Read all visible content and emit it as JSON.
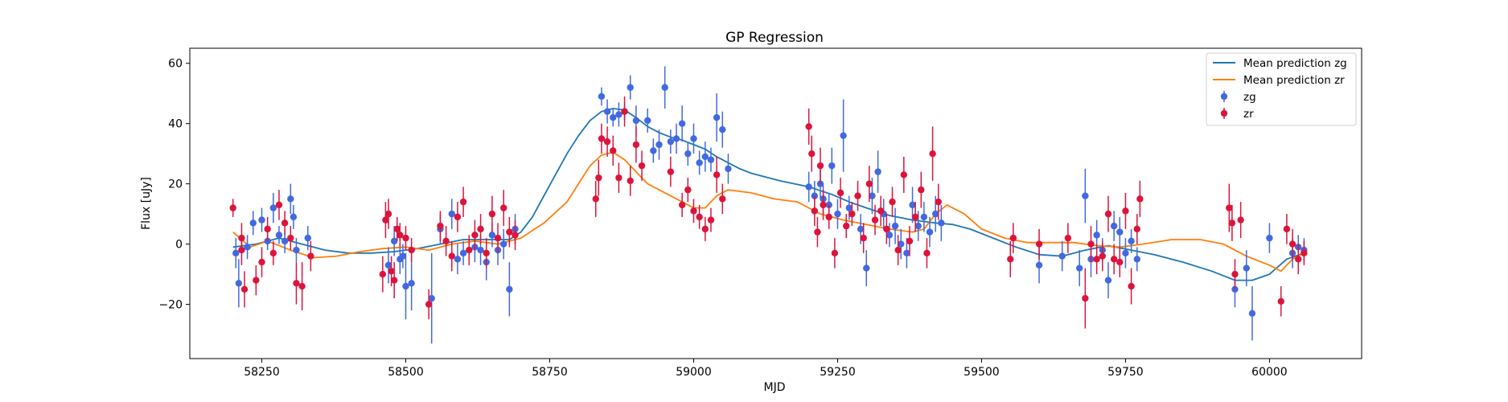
{
  "chart_data": {
    "type": "scatter",
    "title": "GP Regression",
    "xlabel": "MJD",
    "ylabel": "Flux [uJy]",
    "xlim": [
      58125,
      60160
    ],
    "ylim": [
      -38,
      65
    ],
    "xticks": [
      58250,
      58500,
      58750,
      59000,
      59250,
      59500,
      59750,
      60000
    ],
    "yticks": [
      -20,
      0,
      20,
      40,
      60
    ],
    "grid": false,
    "legend_position": "top-right",
    "lines": [
      {
        "name": "Mean prediction zg",
        "color": "#1f77b4",
        "x": [
          58200,
          58240,
          58280,
          58320,
          58360,
          58400,
          58440,
          58480,
          58520,
          58560,
          58600,
          58640,
          58680,
          58700,
          58720,
          58740,
          58760,
          58780,
          58800,
          58820,
          58840,
          58860,
          58880,
          58900,
          58920,
          58940,
          58960,
          58980,
          59000,
          59020,
          59040,
          59060,
          59080,
          59100,
          59150,
          59200,
          59240,
          59270,
          59300,
          59340,
          59380,
          59420,
          59450,
          59480,
          59520,
          59560,
          59600,
          59640,
          59680,
          59720,
          59760,
          59800,
          59850,
          59900,
          59940,
          59970,
          60000,
          60030,
          60060
        ],
        "y": [
          -1,
          0,
          2,
          0,
          -2,
          -3,
          -3,
          -2.5,
          -1.5,
          0,
          1.5,
          1.5,
          1.5,
          4,
          9,
          16,
          23,
          30,
          36,
          41,
          44,
          45,
          44.5,
          42,
          39,
          37,
          35.5,
          34.5,
          33,
          31.5,
          29,
          27,
          25,
          23.5,
          21,
          19,
          16.5,
          14,
          12,
          9.5,
          8,
          7,
          6.5,
          5,
          2,
          -1,
          -3.5,
          -4,
          -2,
          -0.5,
          -2,
          -3.5,
          -6,
          -9,
          -12,
          -12,
          -10,
          -5,
          -3
        ]
      },
      {
        "name": "Mean prediction zr",
        "color": "#ff7f0e",
        "x": [
          58200,
          58230,
          58260,
          58300,
          58340,
          58380,
          58420,
          58460,
          58500,
          58540,
          58580,
          58620,
          58660,
          58700,
          58740,
          58780,
          58800,
          58820,
          58840,
          58860,
          58880,
          58900,
          58920,
          58940,
          58960,
          58980,
          59000,
          59020,
          59040,
          59060,
          59080,
          59100,
          59140,
          59180,
          59220,
          59260,
          59300,
          59340,
          59380,
          59400,
          59420,
          59440,
          59470,
          59500,
          59540,
          59580,
          59620,
          59660,
          59700,
          59740,
          59780,
          59830,
          59880,
          59920,
          59960,
          60000,
          60020,
          60040,
          60060
        ],
        "y": [
          4,
          -1,
          1,
          -2,
          -4.5,
          -4,
          -2.5,
          -1.5,
          -1,
          -2,
          0,
          1,
          0,
          2,
          7,
          14,
          20,
          26,
          29.5,
          30.5,
          28,
          24,
          20,
          18,
          16,
          14,
          12,
          12,
          16,
          18,
          17.5,
          17,
          15,
          14,
          10,
          8,
          6.5,
          5,
          4,
          5,
          10,
          13,
          10,
          5,
          2,
          0.5,
          0.5,
          0.5,
          -0.5,
          -1,
          0,
          1.5,
          1.5,
          0,
          -4,
          -7,
          -9,
          -5,
          -3
        ]
      }
    ],
    "series": [
      {
        "name": "zg",
        "color": "#4169e1",
        "points": [
          [
            58205,
            -3,
            5
          ],
          [
            58210,
            -13,
            8
          ],
          [
            58225,
            -1,
            4
          ],
          [
            58235,
            7,
            4
          ],
          [
            58250,
            8,
            4
          ],
          [
            58260,
            1,
            3
          ],
          [
            58270,
            12,
            5
          ],
          [
            58280,
            3,
            3
          ],
          [
            58290,
            1,
            4
          ],
          [
            58300,
            15,
            5
          ],
          [
            58305,
            9,
            4
          ],
          [
            58310,
            -2,
            4
          ],
          [
            58330,
            2,
            4
          ],
          [
            58470,
            -7,
            6
          ],
          [
            58480,
            1,
            5
          ],
          [
            58490,
            -5,
            5
          ],
          [
            58495,
            -4,
            4
          ],
          [
            58500,
            -14,
            11
          ],
          [
            58510,
            -13,
            9
          ],
          [
            58545,
            -18,
            15
          ],
          [
            58560,
            5,
            5
          ],
          [
            58580,
            10,
            5
          ],
          [
            58590,
            -5,
            5
          ],
          [
            58600,
            -3,
            4
          ],
          [
            58620,
            -1,
            5
          ],
          [
            58630,
            -2,
            5
          ],
          [
            58640,
            -6,
            6
          ],
          [
            58650,
            3,
            4
          ],
          [
            58660,
            -2,
            5
          ],
          [
            58670,
            0,
            5
          ],
          [
            58680,
            -15,
            9
          ],
          [
            58690,
            5,
            5
          ],
          [
            58840,
            49,
            3
          ],
          [
            58850,
            44,
            4
          ],
          [
            58860,
            42,
            3
          ],
          [
            58870,
            43,
            4
          ],
          [
            58880,
            44,
            3
          ],
          [
            58890,
            52,
            4
          ],
          [
            58900,
            41,
            5
          ],
          [
            58920,
            41,
            4
          ],
          [
            58930,
            31,
            4
          ],
          [
            58940,
            33,
            5
          ],
          [
            58950,
            52,
            7
          ],
          [
            58960,
            34,
            4
          ],
          [
            58970,
            35,
            5
          ],
          [
            58980,
            40,
            6
          ],
          [
            58990,
            30,
            4
          ],
          [
            59000,
            35,
            5
          ],
          [
            59010,
            27,
            4
          ],
          [
            59020,
            29,
            5
          ],
          [
            59030,
            28,
            4
          ],
          [
            59040,
            42,
            8
          ],
          [
            59050,
            38,
            6
          ],
          [
            59060,
            25,
            5
          ],
          [
            59200,
            19,
            5
          ],
          [
            59210,
            16,
            5
          ],
          [
            59220,
            20,
            5
          ],
          [
            59225,
            15,
            5
          ],
          [
            59235,
            13,
            4
          ],
          [
            59240,
            26,
            6
          ],
          [
            59250,
            10,
            5
          ],
          [
            59260,
            36,
            12
          ],
          [
            59270,
            12,
            4
          ],
          [
            59290,
            5,
            5
          ],
          [
            59300,
            -8,
            6
          ],
          [
            59310,
            16,
            6
          ],
          [
            59320,
            24,
            7
          ],
          [
            59330,
            10,
            5
          ],
          [
            59340,
            3,
            4
          ],
          [
            59350,
            6,
            6
          ],
          [
            59360,
            0,
            5
          ],
          [
            59370,
            -3,
            5
          ],
          [
            59380,
            13,
            6
          ],
          [
            59390,
            6,
            5
          ],
          [
            59400,
            9,
            5
          ],
          [
            59410,
            4,
            5
          ],
          [
            59420,
            10,
            6
          ],
          [
            59430,
            7,
            6
          ],
          [
            59600,
            -7,
            6
          ],
          [
            59640,
            -4,
            5
          ],
          [
            59670,
            -8,
            6
          ],
          [
            59680,
            16,
            9
          ],
          [
            59690,
            -5,
            6
          ],
          [
            59700,
            3,
            5
          ],
          [
            59710,
            -2,
            4
          ],
          [
            59720,
            -12,
            6
          ],
          [
            59730,
            6,
            5
          ],
          [
            59740,
            4,
            5
          ],
          [
            59750,
            -3,
            5
          ],
          [
            59760,
            1,
            4
          ],
          [
            59770,
            -5,
            4
          ],
          [
            59940,
            -15,
            6
          ],
          [
            59960,
            -8,
            6
          ],
          [
            59970,
            -23,
            9
          ],
          [
            60000,
            2,
            5
          ],
          [
            60040,
            -3,
            5
          ],
          [
            60050,
            -1,
            4
          ],
          [
            60060,
            -2,
            4
          ]
        ]
      },
      {
        "name": "zr",
        "color": "#dc143c",
        "points": [
          [
            58200,
            12,
            3
          ],
          [
            58215,
            -2,
            5
          ],
          [
            58215,
            2,
            5
          ],
          [
            58220,
            -15,
            6
          ],
          [
            58240,
            -12,
            5
          ],
          [
            58250,
            -6,
            5
          ],
          [
            58260,
            5,
            4
          ],
          [
            58270,
            -3,
            4
          ],
          [
            58280,
            13,
            5
          ],
          [
            58290,
            7,
            4
          ],
          [
            58300,
            2,
            4
          ],
          [
            58310,
            -13,
            7
          ],
          [
            58320,
            -14,
            8
          ],
          [
            58335,
            -4,
            5
          ],
          [
            58460,
            -10,
            6
          ],
          [
            58465,
            8,
            6
          ],
          [
            58470,
            10,
            5
          ],
          [
            58475,
            -9,
            5
          ],
          [
            58480,
            -12,
            6
          ],
          [
            58485,
            5,
            4
          ],
          [
            58490,
            3,
            4
          ],
          [
            58500,
            2,
            4
          ],
          [
            58510,
            -2,
            4
          ],
          [
            58540,
            -20,
            5
          ],
          [
            58560,
            6,
            5
          ],
          [
            58570,
            1,
            5
          ],
          [
            58580,
            -4,
            5
          ],
          [
            58590,
            9,
            5
          ],
          [
            58600,
            14,
            5
          ],
          [
            58610,
            -2,
            5
          ],
          [
            58620,
            3,
            5
          ],
          [
            58630,
            5,
            5
          ],
          [
            58640,
            -3,
            5
          ],
          [
            58650,
            10,
            6
          ],
          [
            58660,
            2,
            5
          ],
          [
            58670,
            12,
            6
          ],
          [
            58680,
            4,
            5
          ],
          [
            58690,
            3,
            5
          ],
          [
            58830,
            15,
            6
          ],
          [
            58835,
            22,
            6
          ],
          [
            58840,
            35,
            5
          ],
          [
            58850,
            34,
            5
          ],
          [
            58860,
            31,
            5
          ],
          [
            58870,
            22,
            5
          ],
          [
            58880,
            44,
            5
          ],
          [
            58890,
            21,
            5
          ],
          [
            58900,
            33,
            6
          ],
          [
            58910,
            26,
            5
          ],
          [
            58960,
            24,
            5
          ],
          [
            58980,
            13,
            4
          ],
          [
            58990,
            18,
            4
          ],
          [
            59000,
            11,
            4
          ],
          [
            59010,
            9,
            4
          ],
          [
            59020,
            5,
            4
          ],
          [
            59030,
            8,
            4
          ],
          [
            59040,
            23,
            6
          ],
          [
            59050,
            15,
            5
          ],
          [
            59200,
            39,
            6
          ],
          [
            59205,
            30,
            6
          ],
          [
            59210,
            11,
            5
          ],
          [
            59215,
            4,
            5
          ],
          [
            59220,
            26,
            6
          ],
          [
            59225,
            13,
            5
          ],
          [
            59235,
            9,
            4
          ],
          [
            59245,
            -3,
            5
          ],
          [
            59255,
            17,
            5
          ],
          [
            59265,
            6,
            4
          ],
          [
            59275,
            10,
            4
          ],
          [
            59285,
            16,
            5
          ],
          [
            59295,
            2,
            5
          ],
          [
            59305,
            20,
            6
          ],
          [
            59315,
            8,
            5
          ],
          [
            59325,
            11,
            5
          ],
          [
            59335,
            5,
            5
          ],
          [
            59345,
            14,
            5
          ],
          [
            59355,
            -2,
            5
          ],
          [
            59365,
            23,
            6
          ],
          [
            59375,
            1,
            5
          ],
          [
            59385,
            9,
            5
          ],
          [
            59395,
            18,
            6
          ],
          [
            59405,
            -3,
            5
          ],
          [
            59415,
            30,
            9
          ],
          [
            59425,
            14,
            6
          ],
          [
            59550,
            -5,
            6
          ],
          [
            59555,
            2,
            5
          ],
          [
            59600,
            0,
            5
          ],
          [
            59650,
            2,
            5
          ],
          [
            59680,
            -18,
            10
          ],
          [
            59690,
            0,
            6
          ],
          [
            59700,
            -5,
            5
          ],
          [
            59710,
            -4,
            5
          ],
          [
            59720,
            10,
            6
          ],
          [
            59730,
            -5,
            5
          ],
          [
            59740,
            -6,
            5
          ],
          [
            59750,
            11,
            6
          ],
          [
            59760,
            -14,
            6
          ],
          [
            59770,
            5,
            5
          ],
          [
            59775,
            15,
            6
          ],
          [
            59930,
            12,
            8
          ],
          [
            59935,
            7,
            6
          ],
          [
            59940,
            -10,
            5
          ],
          [
            59950,
            8,
            6
          ],
          [
            60020,
            -19,
            5
          ],
          [
            60030,
            5,
            5
          ],
          [
            60040,
            0,
            5
          ],
          [
            60050,
            -5,
            5
          ],
          [
            60060,
            -3,
            4
          ]
        ]
      }
    ]
  }
}
